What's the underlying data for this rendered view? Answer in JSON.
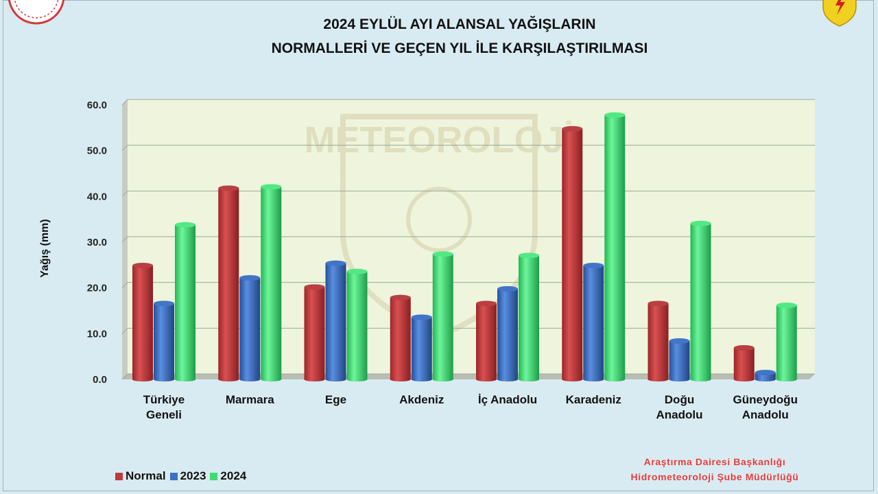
{
  "title_line1": "2024 EYLÜL AYI ALANSAL YAĞIŞLARIN",
  "title_line2": "NORMALLERİ VE GEÇEN YIL İLE KARŞILAŞTIRILMASI",
  "watermark_text": "METEOROLOJİ",
  "credit_line1": "Araştırma Dairesi Başkanlığı",
  "credit_line2": "Hidrometeoroloji Şube Müdürlüğü",
  "chart_data": {
    "type": "bar",
    "title": "2024 EYLÜL AYI ALANSAL YAĞIŞLARIN NORMALLERİ VE GEÇEN YIL İLE KARŞILAŞTIRILMASI",
    "ylabel": "Yağış (mm)",
    "xlabel": "",
    "ylim": [
      0,
      60
    ],
    "yticks": [
      "0.0",
      "10.0",
      "20.0",
      "30.0",
      "40.0",
      "50.0",
      "60.0"
    ],
    "grid": true,
    "legend_position": "bottom-left",
    "categories": [
      [
        "Türkiye",
        "Geneli"
      ],
      [
        "Marmara"
      ],
      [
        "Ege"
      ],
      [
        "Akdeniz"
      ],
      [
        "İç Anadolu"
      ],
      [
        "Karadeniz"
      ],
      [
        "Doğu",
        "Anadolu"
      ],
      [
        "Güneydoğu",
        "Anadolu"
      ]
    ],
    "series": [
      {
        "name": "Normal",
        "color": "#c0393b",
        "values": [
          24.9,
          41.8,
          20.2,
          17.9,
          16.6,
          54.8,
          16.6,
          6.9
        ]
      },
      {
        "name": "2023",
        "color": "#3b6fc4",
        "values": [
          16.6,
          22.2,
          25.4,
          13.6,
          19.8,
          24.9,
          8.4,
          1.5
        ]
      },
      {
        "name": "2024",
        "color": "#3ddc72",
        "values": [
          33.8,
          42.1,
          23.6,
          27.4,
          27.1,
          57.8,
          34.1,
          16.2
        ]
      }
    ]
  },
  "colors": {
    "background": "#d9ebf2",
    "plot_area": "#eef5dc",
    "gridline": "#9aa89a",
    "credit_text": "#e23b3b"
  }
}
